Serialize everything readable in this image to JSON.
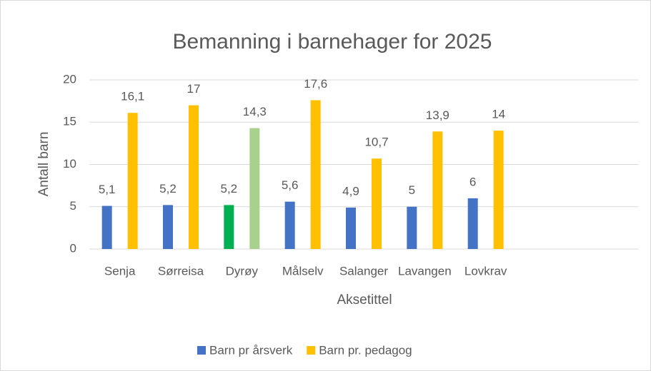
{
  "chart_data": {
    "type": "bar",
    "title": "Bemanning i barnehager for 2025",
    "x_label": "Aksetittel",
    "y_label": "Antall barn",
    "categories": [
      "Senja",
      "Sørreisa",
      "Dyrøy",
      "Målselv",
      "Salanger",
      "Lavangen",
      "Lovkrav",
      null,
      null
    ],
    "series": [
      {
        "name": "Barn pr årsverk",
        "color": "#4472c4",
        "point_colors": [
          "#4472c4",
          "#4472c4",
          "#00b050",
          "#4472c4",
          "#4472c4",
          "#4472c4",
          "#4472c4",
          "#4472c4",
          "#4472c4"
        ],
        "values": [
          5.1,
          5.2,
          5.2,
          5.6,
          4.9,
          5,
          6,
          null,
          null
        ],
        "value_labels": [
          "5,1",
          "5,2",
          "5,2",
          "5,6",
          "4,9",
          "5",
          "6",
          null,
          null
        ]
      },
      {
        "name": "Barn pr. pedagog",
        "color": "#ffc000",
        "point_colors": [
          "#ffc000",
          "#ffc000",
          "#a9d18e",
          "#ffc000",
          "#ffc000",
          "#ffc000",
          "#ffc000",
          "#ffc000",
          "#ffc000"
        ],
        "values": [
          16.1,
          17,
          14.3,
          17.6,
          10.7,
          13.9,
          14,
          null,
          null
        ],
        "value_labels": [
          "16,1",
          "17",
          "14,3",
          "17,6",
          "10,7",
          "13,9",
          "14",
          null,
          null
        ]
      }
    ],
    "ylim": [
      0,
      20
    ],
    "yticks": [
      0,
      5,
      10,
      15,
      20
    ],
    "grid": true,
    "legend": "bottom"
  }
}
